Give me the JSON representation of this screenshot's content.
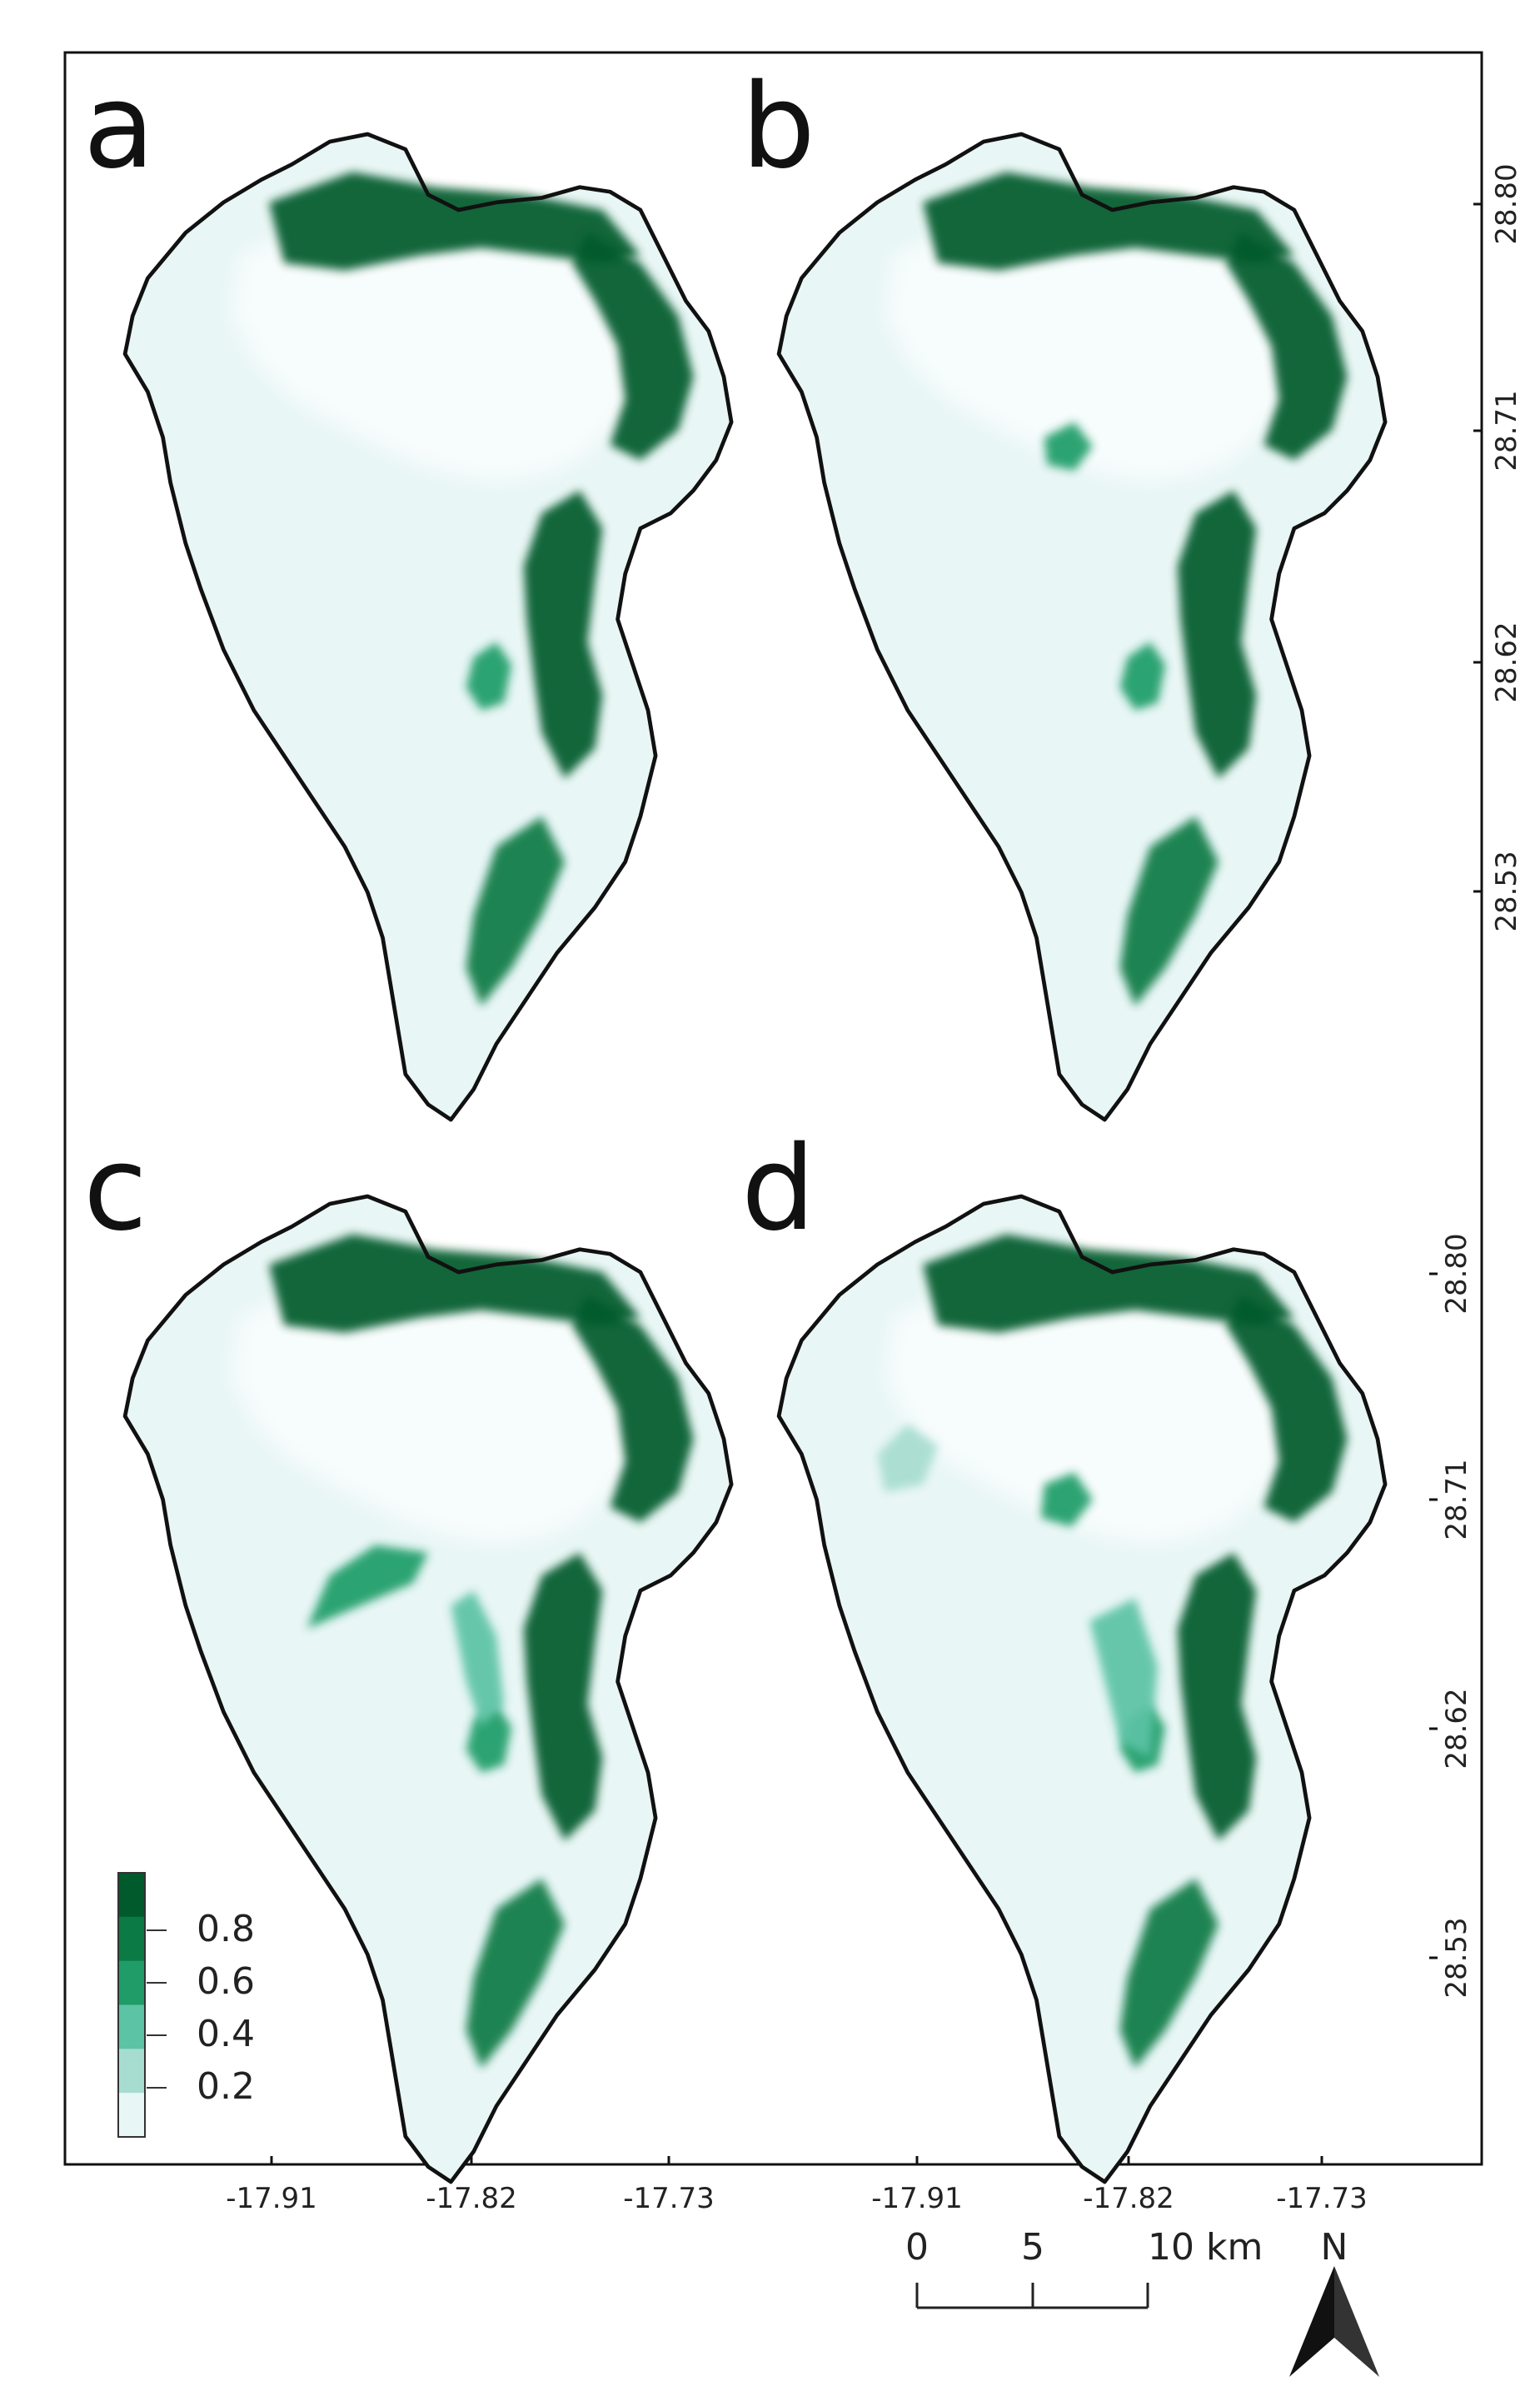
{
  "figure": {
    "panels": [
      {
        "letter": "a"
      },
      {
        "letter": "b"
      },
      {
        "letter": "c"
      },
      {
        "letter": "d"
      }
    ],
    "longitude_ticks": [
      "-17.91",
      "-17.82",
      "-17.73"
    ],
    "latitude_ticks": [
      "28.80",
      "28.71",
      "28.62",
      "28.53"
    ],
    "legend": {
      "labels": [
        "0.8",
        "0.6",
        "0.4",
        "0.2"
      ],
      "colors": [
        "#005a2b",
        "#0b7a44",
        "#1f9c68",
        "#5cc3a4",
        "#a7ddd0",
        "#e8f6f5"
      ]
    },
    "scale_bar": {
      "labels": [
        "0",
        "5",
        "10 km"
      ]
    },
    "north_arrow": {
      "label": "N"
    },
    "colors": {
      "high": "#005a2b",
      "mid_high": "#0b7a44",
      "mid": "#1f9c68",
      "low_mid": "#5cc3a4",
      "low": "#a7ddd0",
      "background": "#e8f6f5",
      "outline": "#111111"
    }
  }
}
